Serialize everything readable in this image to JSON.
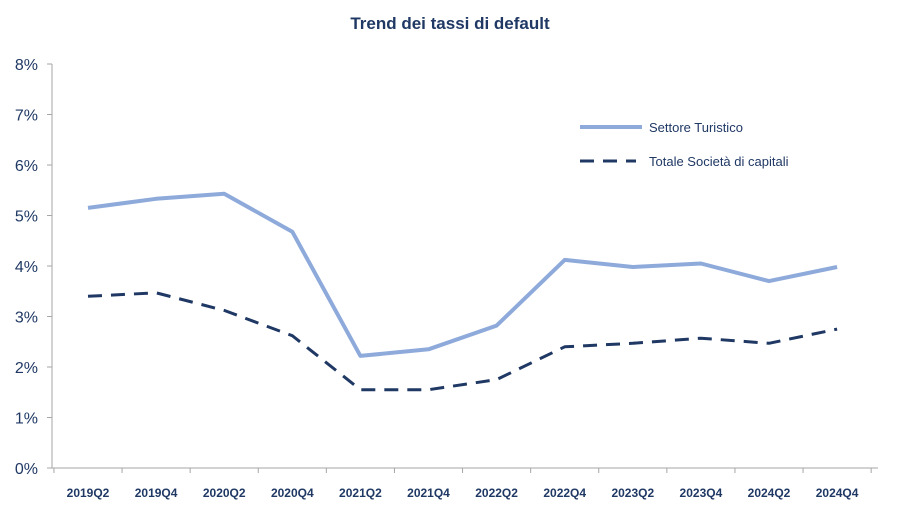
{
  "chart_data": {
    "type": "line",
    "title": "Trend dei tassi di default",
    "categories": [
      "2019Q2",
      "2019Q4",
      "2020Q2",
      "2020Q4",
      "2021Q2",
      "2021Q4",
      "2022Q2",
      "2022Q4",
      "2023Q2",
      "2023Q4",
      "2024Q2",
      "2024Q4"
    ],
    "y_ticks": [
      "0%",
      "1%",
      "2%",
      "3%",
      "4%",
      "5%",
      "6%",
      "7%",
      "8%"
    ],
    "ylim": [
      0,
      8
    ],
    "y_unit": "%",
    "grid": false,
    "legend_position": "top-right",
    "series": [
      {
        "name": "Settore Turistico",
        "style": "solid",
        "color": "#8eaadb",
        "values": [
          5.15,
          5.33,
          5.43,
          4.68,
          2.22,
          2.35,
          2.82,
          4.12,
          3.98,
          4.05,
          3.7,
          3.98
        ]
      },
      {
        "name": "Totale Società di capitali",
        "style": "dashed",
        "color": "#1f3864",
        "values": [
          3.4,
          3.47,
          3.12,
          2.62,
          1.55,
          1.55,
          1.75,
          2.4,
          2.47,
          2.57,
          2.47,
          2.75
        ]
      }
    ]
  }
}
